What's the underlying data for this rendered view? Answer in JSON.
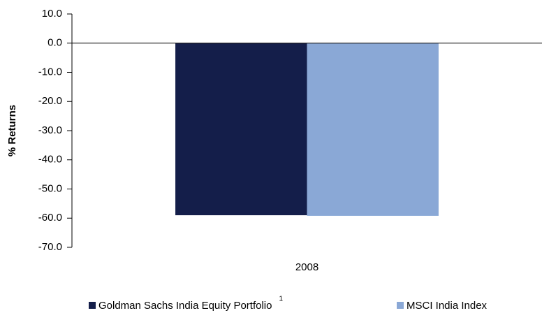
{
  "chart_data": {
    "type": "bar",
    "y_label": "% Returns",
    "categories": [
      "2008"
    ],
    "series": [
      {
        "name": "Goldman Sachs India Equity Portfolio",
        "footnote": "1",
        "color": "#141e4a",
        "values": [
          -59.0
        ]
      },
      {
        "name": "MSCI India Index",
        "color": "#8aa8d6",
        "values": [
          -59.2
        ]
      }
    ],
    "ylim": [
      -70,
      10
    ],
    "yticks": [
      {
        "value": 10,
        "label": "10.0"
      },
      {
        "value": 0,
        "label": "0.0"
      },
      {
        "value": -10,
        "label": "-10.0"
      },
      {
        "value": -20,
        "label": "-20.0"
      },
      {
        "value": -30,
        "label": "-30.0"
      },
      {
        "value": -40,
        "label": "-40.0"
      },
      {
        "value": -50,
        "label": "-50.0"
      },
      {
        "value": -60,
        "label": "-60.0"
      },
      {
        "value": -70,
        "label": "-70.0"
      }
    ],
    "grid": false,
    "legend": "bottom"
  }
}
